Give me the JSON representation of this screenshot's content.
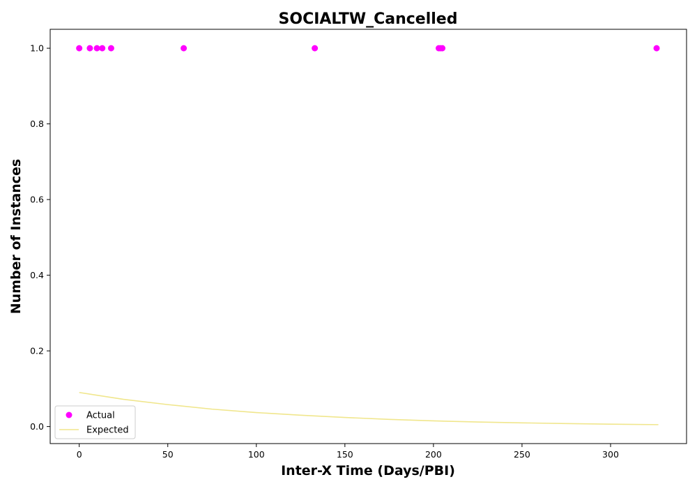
{
  "chart_data": {
    "type": "scatter",
    "title": "SOCIALTW_Cancelled",
    "xlabel": "Inter-X Time (Days/PBI)",
    "ylabel": "Number of Instances",
    "xlim": [
      -16.4,
      342.9
    ],
    "ylim": [
      -0.045,
      1.05
    ],
    "xticks": [
      0,
      50,
      100,
      150,
      200,
      250,
      300
    ],
    "xtick_labels": [
      "0",
      "50",
      "100",
      "150",
      "200",
      "250",
      "300"
    ],
    "yticks": [
      0.0,
      0.2,
      0.4,
      0.6,
      0.8,
      1.0
    ],
    "ytick_labels": [
      "0.0",
      "0.2",
      "0.4",
      "0.6",
      "0.8",
      "1.0"
    ],
    "grid": false,
    "legend_position": "lower-left",
    "series": [
      {
        "name": "Actual",
        "kind": "scatter",
        "color": "#ff00ff",
        "x": [
          0,
          6,
          10,
          13,
          18,
          59,
          133,
          203,
          204,
          205,
          326
        ],
        "y": [
          1,
          1,
          1,
          1,
          1,
          1,
          1,
          1,
          1,
          1,
          1
        ]
      },
      {
        "name": "Expected",
        "kind": "line",
        "color": "#f0e68c",
        "x": [
          0,
          25,
          50,
          75,
          100,
          125,
          150,
          175,
          200,
          225,
          250,
          275,
          300,
          327
        ],
        "y": [
          0.09,
          0.072,
          0.058,
          0.046,
          0.037,
          0.03,
          0.024,
          0.019,
          0.015,
          0.012,
          0.0098,
          0.0078,
          0.0063,
          0.005
        ]
      }
    ]
  }
}
